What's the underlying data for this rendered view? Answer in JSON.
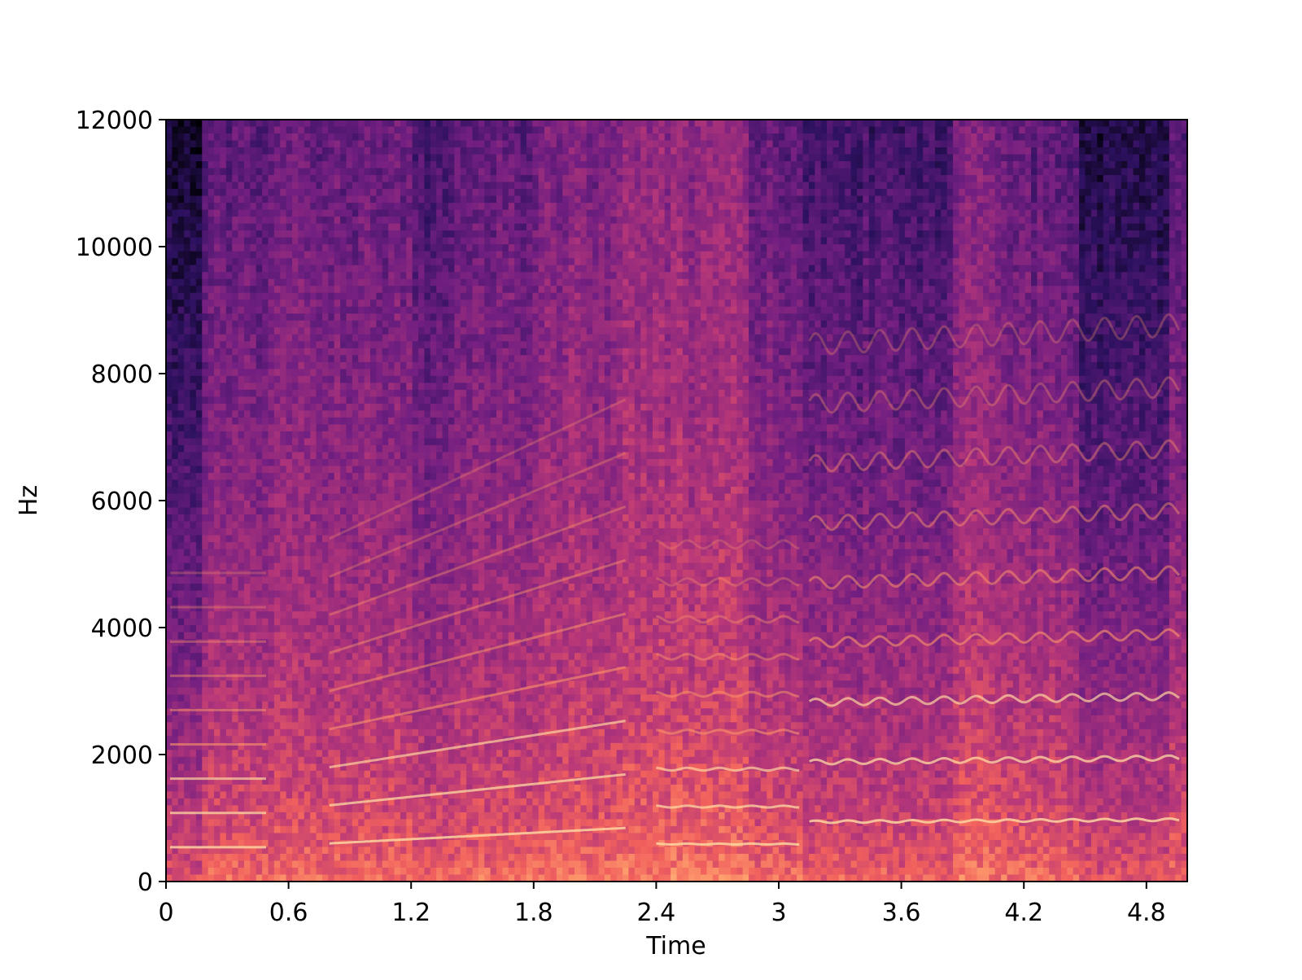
{
  "chart_data": {
    "type": "spectrogram",
    "xlabel": "Time",
    "ylabel": "Hz",
    "xlim": [
      0,
      5.0
    ],
    "ylim": [
      0,
      12000
    ],
    "xticks": [
      0,
      0.6,
      1.2,
      1.8,
      2.4,
      3,
      3.6,
      4.2,
      4.8
    ],
    "yticks": [
      0,
      2000,
      4000,
      6000,
      8000,
      10000,
      12000
    ]
  }
}
